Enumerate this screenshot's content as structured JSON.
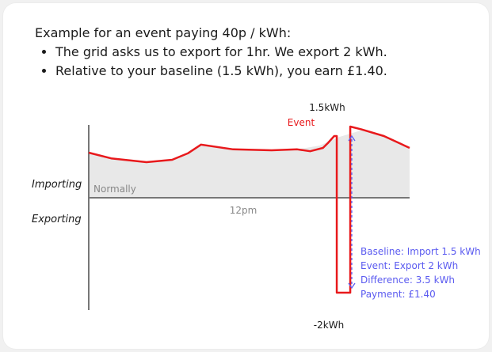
{
  "intro": {
    "heading": "Example for an event paying 40p / kWh:",
    "bullets": [
      "The grid asks us to export for 1hr. We export 2 kWh.",
      "Relative to your baseline (1.5 kWh), you earn £1.40."
    ]
  },
  "chart_data": {
    "type": "line",
    "title": "",
    "xlabel": "",
    "ylabel": "",
    "y_region_labels": [
      "Importing",
      "Exporting"
    ],
    "x_tick_label": "12pm",
    "series": [
      {
        "name": "Normally",
        "kind": "area",
        "color": "#e8e8e8",
        "points": [
          [
            0.0,
            0.95
          ],
          [
            0.07,
            0.83
          ],
          [
            0.18,
            0.75
          ],
          [
            0.26,
            0.8
          ],
          [
            0.31,
            0.94
          ],
          [
            0.35,
            1.12
          ],
          [
            0.45,
            1.02
          ],
          [
            0.57,
            1.0
          ],
          [
            0.65,
            1.02
          ],
          [
            0.72,
            1.1
          ],
          [
            0.78,
            1.28
          ],
          [
            0.85,
            1.42
          ],
          [
            0.92,
            1.3
          ],
          [
            1.0,
            1.05
          ]
        ]
      },
      {
        "name": "Event",
        "kind": "line",
        "color": "#e8191c",
        "points": [
          [
            0.0,
            0.95
          ],
          [
            0.07,
            0.83
          ],
          [
            0.18,
            0.75
          ],
          [
            0.26,
            0.8
          ],
          [
            0.31,
            0.94
          ],
          [
            0.35,
            1.12
          ],
          [
            0.45,
            1.02
          ],
          [
            0.57,
            1.0
          ],
          [
            0.65,
            1.02
          ],
          [
            0.69,
            0.98
          ],
          [
            0.73,
            1.05
          ],
          [
            0.745,
            1.15
          ],
          [
            0.765,
            1.3
          ],
          [
            0.773,
            1.3
          ],
          [
            0.773,
            -2.0
          ],
          [
            0.775,
            -2.0
          ],
          [
            0.815,
            -2.0
          ],
          [
            0.815,
            1.5
          ],
          [
            0.85,
            1.44
          ],
          [
            0.92,
            1.3
          ],
          [
            1.0,
            1.05
          ]
        ]
      }
    ],
    "top_label": "1.5kWh",
    "bottom_label": "-2kWh",
    "annotation": {
      "color": "#5b5bf0",
      "lines": [
        "Baseline: Import 1.5 kWh",
        "Event: Export 2 kWh",
        "Difference: 3.5 kWh",
        "Payment: £1.40"
      ]
    },
    "colors": {
      "axis": "#777777",
      "text": "#1a1a1a",
      "muted": "#888888"
    }
  }
}
